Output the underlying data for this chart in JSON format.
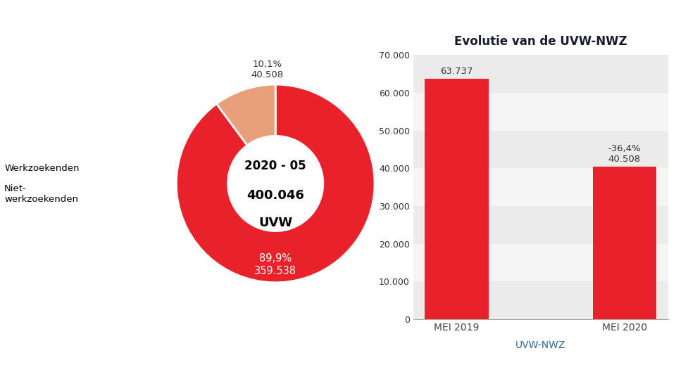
{
  "donut": {
    "values": [
      359538,
      40508
    ],
    "colors": [
      "#E8212A",
      "#E8A07A"
    ],
    "center_line1": "2020 - 05",
    "center_line2": "400.046",
    "center_line3": "UVW",
    "legend_labels": [
      "Werkzoekenden",
      "Niet-\nwerkzoekenden"
    ],
    "legend_colors": [
      "#E8212A",
      "#E8A07A"
    ],
    "label_wz": "89,9%\n359.538",
    "label_nwz": "10,1%\n40.508"
  },
  "bar": {
    "categories": [
      "MEI 2019",
      "MEI 2020"
    ],
    "values": [
      63737,
      40508
    ],
    "bar_color": "#E8212A",
    "title": "Evolutie van de UVW-NWZ",
    "xlabel": "UVW-NWZ",
    "ylim": [
      0,
      70000
    ],
    "yticks": [
      0,
      10000,
      20000,
      30000,
      40000,
      50000,
      60000,
      70000
    ],
    "ytick_labels": [
      "0",
      "10.000",
      "20.000",
      "30.000",
      "40.000",
      "50.000",
      "60.000",
      "70.000"
    ],
    "label_2019": "63.737",
    "label_2020": "-36,4%\n40.508"
  },
  "fig_bg": "#FFFFFF"
}
